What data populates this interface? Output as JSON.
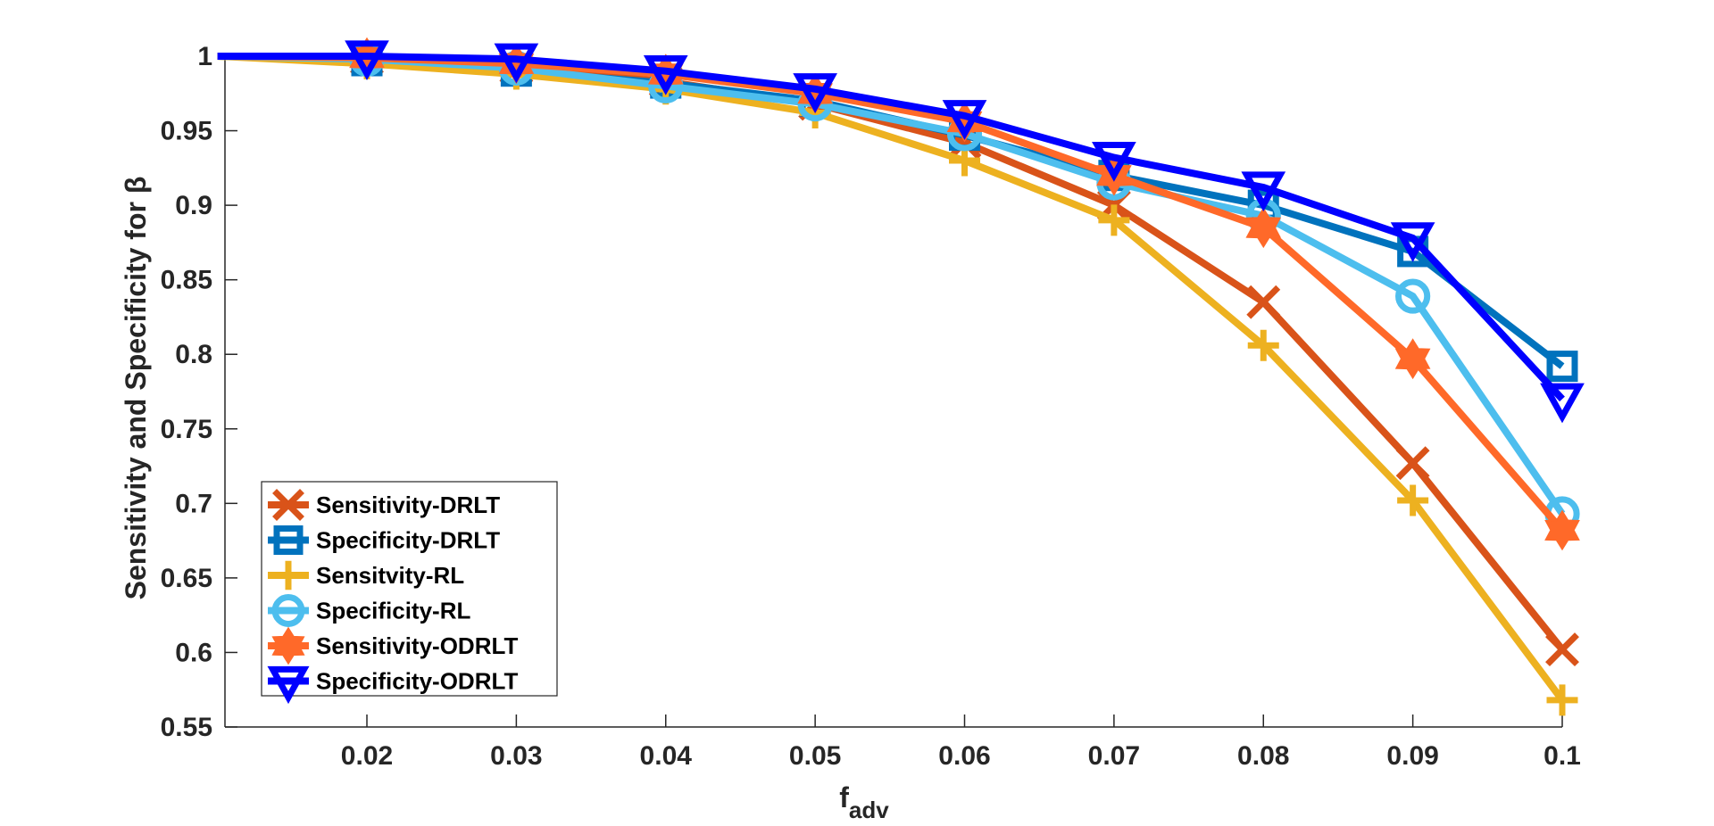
{
  "chart_data": {
    "type": "line",
    "title": "",
    "xlabel_main": "f",
    "xlabel_sub": "adv",
    "ylabel": "Sensitivity and Specificity for β",
    "xlim": [
      0.0105,
      0.1
    ],
    "ylim": [
      0.55,
      1.0
    ],
    "x_ticks": [
      "0.02",
      "0.03",
      "0.04",
      "0.05",
      "0.06",
      "0.07",
      "0.08",
      "0.09",
      "0.1"
    ],
    "x_tick_values": [
      0.02,
      0.03,
      0.04,
      0.05,
      0.06,
      0.07,
      0.08,
      0.09,
      0.1
    ],
    "y_ticks": [
      "0.55",
      "0.6",
      "0.65",
      "0.7",
      "0.75",
      "0.8",
      "0.85",
      "0.9",
      "0.95",
      "1"
    ],
    "y_tick_values": [
      0.55,
      0.6,
      0.65,
      0.7,
      0.75,
      0.8,
      0.85,
      0.9,
      0.95,
      1.0
    ],
    "x": [
      0.01,
      0.02,
      0.03,
      0.04,
      0.05,
      0.06,
      0.07,
      0.08,
      0.09,
      0.1
    ],
    "legend_position": "lower-left",
    "series": [
      {
        "name": "Sensitivity-DRLT",
        "color": "#D95319",
        "marker": "x",
        "values": [
          1.0,
          0.998,
          0.992,
          0.983,
          0.968,
          0.942,
          0.9,
          0.835,
          0.727,
          0.602
        ]
      },
      {
        "name": "Specificity-DRLT",
        "color": "#0072BD",
        "marker": "square",
        "values": [
          1.0,
          0.997,
          0.99,
          0.982,
          0.97,
          0.947,
          0.92,
          0.9,
          0.869,
          0.792
        ]
      },
      {
        "name": "Sensitvity-RL",
        "color": "#EDB120",
        "marker": "plus",
        "values": [
          1.0,
          0.995,
          0.988,
          0.978,
          0.962,
          0.93,
          0.89,
          0.806,
          0.702,
          0.568
        ]
      },
      {
        "name": "Specificity-RL",
        "color": "#4DBEEE",
        "marker": "circle",
        "values": [
          1.0,
          0.998,
          0.992,
          0.98,
          0.968,
          0.948,
          0.915,
          0.893,
          0.839,
          0.693
        ]
      },
      {
        "name": "Sensitivity-ODRLT",
        "color": "#FF6929",
        "marker": "hexagram",
        "values": [
          1.0,
          0.999,
          0.995,
          0.988,
          0.975,
          0.956,
          0.92,
          0.885,
          0.797,
          0.682
        ]
      },
      {
        "name": "Specificity-ODRLT",
        "color": "#0000FF",
        "marker": "triangle-down",
        "values": [
          1.0,
          1.0,
          0.998,
          0.99,
          0.978,
          0.96,
          0.932,
          0.912,
          0.878,
          0.77
        ]
      }
    ]
  }
}
